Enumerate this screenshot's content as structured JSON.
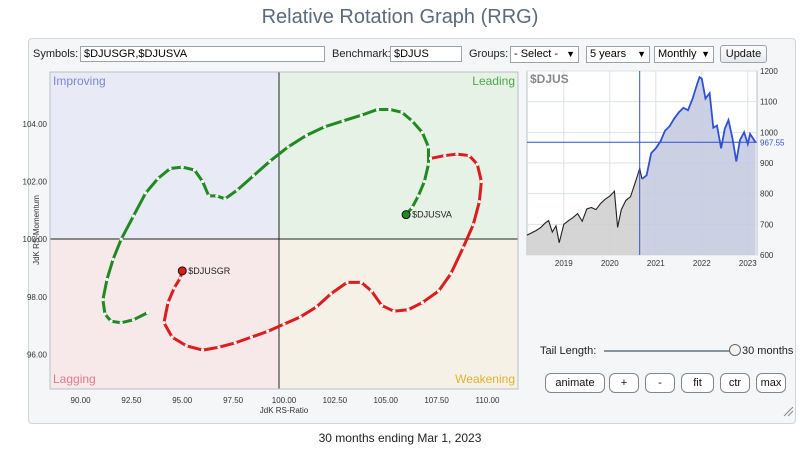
{
  "page": {
    "title": "Relative Rotation Graph (RRG)",
    "footer": "30 months ending Mar 1, 2023"
  },
  "toolbar": {
    "symbols_label": "Symbols:",
    "symbols_value": "$DJUSGR,$DJUSVA",
    "benchmark_label": "Benchmark:",
    "benchmark_value": "$DJUS",
    "groups_label": "Groups:",
    "groups_value": "- Select -",
    "period_value": "5 years",
    "interval_value": "Monthly",
    "update_label": "Update"
  },
  "rrg": {
    "quadrants": {
      "improving": "Improving",
      "leading": "Leading",
      "lagging": "Lagging",
      "weakening": "Weakening"
    },
    "xlabel": "JdK RS-Ratio",
    "ylabel": "JdK RS-Momentum",
    "x_ticks": [
      "90.00",
      "92.50",
      "95.00",
      "97.50",
      "100.00",
      "102.50",
      "105.00",
      "107.50",
      "110.00"
    ],
    "y_ticks": [
      "104.00",
      "102.00",
      "100.00",
      "98.00",
      "96.00"
    ],
    "quadrant_colors": {
      "improving": "#e8eaf5",
      "leading": "#e6f2e6",
      "lagging": "#f7e8ea",
      "weakening": "#f6f1e6"
    }
  },
  "chart_data": [
    {
      "type": "scatter",
      "title": "",
      "xlabel": "JdK RS-Ratio",
      "ylabel": "JdK RS-Momentum",
      "xlim": [
        88.5,
        111.5
      ],
      "ylim": [
        94.8,
        105.8
      ],
      "center": [
        100,
        100
      ],
      "series": [
        {
          "name": "$DJUSVA",
          "color": "#1f8a1f",
          "points": [
            [
              93.3,
              97.45
            ],
            [
              92.6,
              97.2
            ],
            [
              92.0,
              97.1
            ],
            [
              91.5,
              97.15
            ],
            [
              91.2,
              97.4
            ],
            [
              91.1,
              97.9
            ],
            [
              91.3,
              98.6
            ],
            [
              91.6,
              99.3
            ],
            [
              92.0,
              100.0
            ],
            [
              92.6,
              100.8
            ],
            [
              93.2,
              101.6
            ],
            [
              93.8,
              102.1
            ],
            [
              94.4,
              102.45
            ],
            [
              95.0,
              102.5
            ],
            [
              95.6,
              102.4
            ],
            [
              96.0,
              102.0
            ],
            [
              96.3,
              101.5
            ],
            [
              96.7,
              101.5
            ],
            [
              97.1,
              101.4
            ],
            [
              97.7,
              101.7
            ],
            [
              98.5,
              102.2
            ],
            [
              99.3,
              102.7
            ],
            [
              100.2,
              103.2
            ],
            [
              101.1,
              103.6
            ],
            [
              102.0,
              103.9
            ],
            [
              102.9,
              104.1
            ],
            [
              103.8,
              104.3
            ],
            [
              104.6,
              104.5
            ],
            [
              105.2,
              104.5
            ],
            [
              105.8,
              104.4
            ],
            [
              106.3,
              104.1
            ],
            [
              106.8,
              103.7
            ],
            [
              107.1,
              103.2
            ],
            [
              107.1,
              102.6
            ],
            [
              106.9,
              102.0
            ],
            [
              106.6,
              101.5
            ],
            [
              106.3,
              101.1
            ],
            [
              106.0,
              100.85
            ]
          ]
        },
        {
          "name": "$DJUSGR",
          "color": "#dd1c1c",
          "points": [
            [
              107.2,
              102.8
            ],
            [
              107.9,
              102.9
            ],
            [
              108.5,
              102.95
            ],
            [
              109.1,
              102.9
            ],
            [
              109.5,
              102.6
            ],
            [
              109.7,
              102.0
            ],
            [
              109.6,
              101.3
            ],
            [
              109.3,
              100.5
            ],
            [
              108.8,
              99.7
            ],
            [
              108.2,
              98.8
            ],
            [
              107.6,
              98.2
            ],
            [
              106.8,
              97.8
            ],
            [
              106.1,
              97.55
            ],
            [
              105.4,
              97.5
            ],
            [
              104.8,
              97.7
            ],
            [
              104.3,
              98.2
            ],
            [
              103.8,
              98.5
            ],
            [
              103.1,
              98.5
            ],
            [
              102.3,
              98.1
            ],
            [
              101.6,
              97.65
            ],
            [
              100.8,
              97.3
            ],
            [
              100.0,
              97.05
            ],
            [
              99.2,
              96.8
            ],
            [
              98.4,
              96.6
            ],
            [
              97.6,
              96.4
            ],
            [
              96.8,
              96.25
            ],
            [
              96.0,
              96.15
            ],
            [
              95.2,
              96.3
            ],
            [
              94.5,
              96.6
            ],
            [
              94.1,
              97.1
            ],
            [
              94.3,
              97.8
            ],
            [
              94.6,
              98.3
            ],
            [
              94.9,
              98.65
            ],
            [
              95.0,
              98.9
            ]
          ]
        }
      ]
    },
    {
      "type": "area",
      "title": "$DJUS",
      "x_ticks": [
        "2019",
        "2020",
        "2021",
        "2022",
        "2023"
      ],
      "y_ticks": [
        600,
        700,
        800,
        900,
        1000,
        1100,
        1200
      ],
      "ylim": [
        600,
        1200
      ],
      "xlim": [
        2018.2,
        2023.2
      ],
      "current_label": "967.55",
      "crosshair": {
        "x": 2020.65,
        "y": 967.55
      },
      "series": [
        {
          "name": "$DJUS",
          "values": [
            [
              2018.2,
              665
            ],
            [
              2018.3,
              672
            ],
            [
              2018.4,
              680
            ],
            [
              2018.5,
              690
            ],
            [
              2018.6,
              705
            ],
            [
              2018.67,
              712
            ],
            [
              2018.75,
              675
            ],
            [
              2018.83,
              695
            ],
            [
              2018.9,
              640
            ],
            [
              2019.0,
              700
            ],
            [
              2019.1,
              712
            ],
            [
              2019.2,
              722
            ],
            [
              2019.3,
              735
            ],
            [
              2019.4,
              710
            ],
            [
              2019.5,
              750
            ],
            [
              2019.6,
              755
            ],
            [
              2019.7,
              748
            ],
            [
              2019.8,
              768
            ],
            [
              2019.9,
              782
            ],
            [
              2020.0,
              792
            ],
            [
              2020.1,
              808
            ],
            [
              2020.17,
              690
            ],
            [
              2020.25,
              748
            ],
            [
              2020.35,
              778
            ],
            [
              2020.45,
              790
            ],
            [
              2020.55,
              835
            ],
            [
              2020.65,
              882
            ],
            [
              2020.7,
              848
            ]
          ]
        },
        {
          "name": "$DJUS",
          "values": [
            [
              2020.7,
              848
            ],
            [
              2020.8,
              860
            ],
            [
              2020.9,
              932
            ],
            [
              2021.0,
              948
            ],
            [
              2021.1,
              970
            ],
            [
              2021.2,
              1005
            ],
            [
              2021.3,
              1020
            ],
            [
              2021.4,
              1045
            ],
            [
              2021.5,
              1065
            ],
            [
              2021.6,
              1080
            ],
            [
              2021.7,
              1072
            ],
            [
              2021.8,
              1110
            ],
            [
              2021.9,
              1158
            ],
            [
              2021.95,
              1180
            ],
            [
              2022.0,
              1175
            ],
            [
              2022.08,
              1110
            ],
            [
              2022.17,
              1128
            ],
            [
              2022.25,
              1015
            ],
            [
              2022.33,
              1022
            ],
            [
              2022.42,
              948
            ],
            [
              2022.5,
              1012
            ],
            [
              2022.58,
              1040
            ],
            [
              2022.67,
              978
            ],
            [
              2022.75,
              905
            ],
            [
              2022.83,
              975
            ],
            [
              2022.92,
              1000
            ],
            [
              2023.0,
              962
            ],
            [
              2023.05,
              995
            ],
            [
              2023.17,
              967
            ]
          ]
        }
      ]
    }
  ],
  "tail": {
    "label": "Tail Length:",
    "value_label": "30 months",
    "value": 30,
    "max": 30
  },
  "buttons": {
    "animate": "animate",
    "plus": "+",
    "minus": "-",
    "fit": "fit",
    "ctr": "ctr",
    "max": "max"
  },
  "icons": {
    "resize": "resize-grip-icon",
    "dropdown": "chevron-down-icon"
  }
}
